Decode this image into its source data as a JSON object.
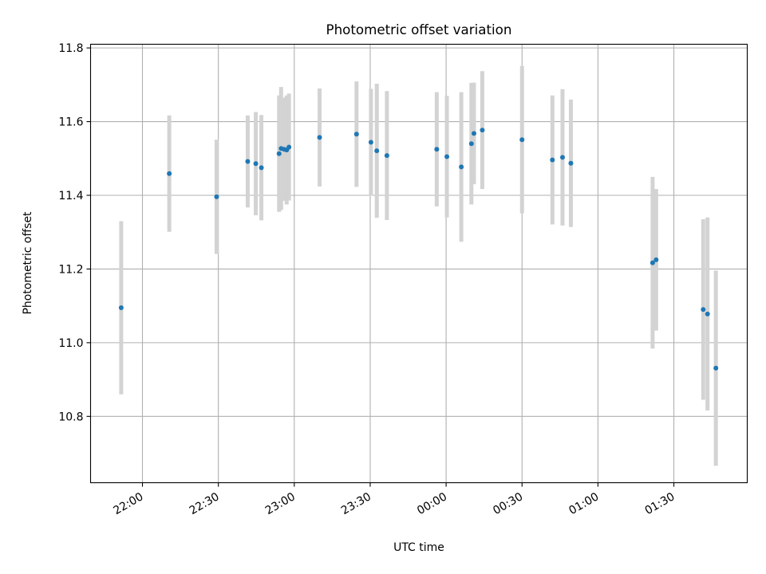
{
  "chart_data": {
    "type": "scatter",
    "title": "Photometric offset variation",
    "xlabel": "UTC time",
    "ylabel": "Photometric offset",
    "x_tick_labels": [
      "22:00",
      "22:30",
      "23:00",
      "23:30",
      "00:00",
      "00:30",
      "01:00",
      "01:30"
    ],
    "x_tick_minutes": [
      1320,
      1350,
      1380,
      1410,
      1440,
      1470,
      1500,
      1530
    ],
    "x_range_minutes": [
      1299.5,
      1559.0
    ],
    "y_ticks": [
      "10.8",
      "11.0",
      "11.2",
      "11.4",
      "11.6",
      "11.8"
    ],
    "ylim": [
      10.62,
      11.81
    ],
    "grid": true,
    "colors": {
      "point": "#1f77b4",
      "errorbar": "#d3d3d3",
      "grid": "#b0b0b0"
    },
    "points": [
      {
        "t": 1311.6,
        "y": 11.095,
        "err": 0.235
      },
      {
        "t": 1330.6,
        "y": 11.459,
        "err": 0.158
      },
      {
        "t": 1349.3,
        "y": 11.396,
        "err": 0.155
      },
      {
        "t": 1361.6,
        "y": 11.492,
        "err": 0.125
      },
      {
        "t": 1364.8,
        "y": 11.486,
        "err": 0.14
      },
      {
        "t": 1367.0,
        "y": 11.475,
        "err": 0.143
      },
      {
        "t": 1374.0,
        "y": 11.513,
        "err": 0.158
      },
      {
        "t": 1374.8,
        "y": 11.527,
        "err": 0.167
      },
      {
        "t": 1376.0,
        "y": 11.525,
        "err": 0.14
      },
      {
        "t": 1377.0,
        "y": 11.523,
        "err": 0.148
      },
      {
        "t": 1377.9,
        "y": 11.531,
        "err": 0.145
      },
      {
        "t": 1390.0,
        "y": 11.557,
        "err": 0.133
      },
      {
        "t": 1404.6,
        "y": 11.566,
        "err": 0.143
      },
      {
        "t": 1410.3,
        "y": 11.544,
        "err": 0.145
      },
      {
        "t": 1412.6,
        "y": 11.521,
        "err": 0.182
      },
      {
        "t": 1416.6,
        "y": 11.508,
        "err": 0.175
      },
      {
        "t": 1436.3,
        "y": 11.525,
        "err": 0.155
      },
      {
        "t": 1440.3,
        "y": 11.505,
        "err": 0.165
      },
      {
        "t": 1446.0,
        "y": 11.477,
        "err": 0.203
      },
      {
        "t": 1450.0,
        "y": 11.54,
        "err": 0.165
      },
      {
        "t": 1451.0,
        "y": 11.568,
        "err": 0.138
      },
      {
        "t": 1454.3,
        "y": 11.577,
        "err": 0.16
      },
      {
        "t": 1470.0,
        "y": 11.551,
        "err": 0.2
      },
      {
        "t": 1482.0,
        "y": 11.496,
        "err": 0.175
      },
      {
        "t": 1486.0,
        "y": 11.503,
        "err": 0.185
      },
      {
        "t": 1489.3,
        "y": 11.487,
        "err": 0.173
      },
      {
        "t": 1521.6,
        "y": 11.217,
        "err": 0.233
      },
      {
        "t": 1523.0,
        "y": 11.225,
        "err": 0.192
      },
      {
        "t": 1541.6,
        "y": 11.09,
        "err": 0.245
      },
      {
        "t": 1543.3,
        "y": 11.078,
        "err": 0.262
      },
      {
        "t": 1546.6,
        "y": 10.931,
        "err": 0.265
      }
    ]
  }
}
